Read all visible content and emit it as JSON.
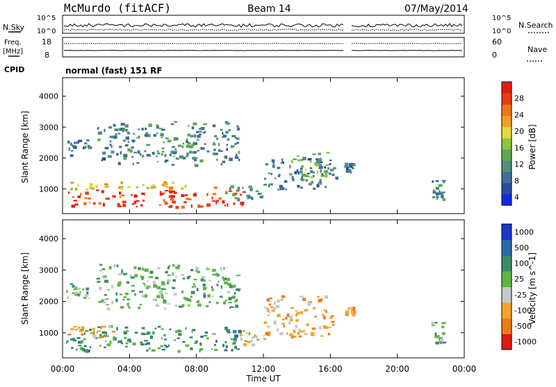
{
  "header": {
    "station": "McMurdo (fitACF)",
    "beam": "Beam 14",
    "date": "07/May/2014",
    "cpid_label": "CPID",
    "cpid_value": "normal (fast) 151 RF"
  },
  "strips": {
    "nsky": {
      "left_label": "N.Sky",
      "left_ticks": [
        "10^5",
        "10^0"
      ],
      "right_ticks": [
        "10^5",
        "10^0"
      ],
      "right_label": "N.Search"
    },
    "freq": {
      "left_label_1": "Freq.",
      "left_label_2": "[MHz]",
      "left_ticks": [
        "18",
        "8"
      ],
      "right_ticks": [
        "60",
        "0"
      ],
      "right_label": "Nave"
    }
  },
  "chart_data": [
    {
      "type": "heatmap",
      "title": "",
      "xlabel": "Time UT",
      "ylabel": "Slant Range [km]",
      "xlim": [
        0,
        24
      ],
      "ylim": [
        200,
        4600
      ],
      "x_ticks": [
        "00:00",
        "04:00",
        "08:00",
        "12:00",
        "16:00",
        "20:00",
        "00:00"
      ],
      "y_ticks": [
        "1000",
        "2000",
        "3000",
        "4000"
      ],
      "colorbar": {
        "label": "Power [dB]",
        "ticks": [
          "4",
          "8",
          "12",
          "16",
          "20",
          "24",
          "28"
        ],
        "colors": [
          "#1428e6",
          "#2a4aa8",
          "#3f6e9a",
          "#4f8f78",
          "#5ea84f",
          "#8fc63a",
          "#e8d83a",
          "#f2a020",
          "#f07418",
          "#ee3a14",
          "#e51d10"
        ]
      },
      "regions": [
        {
          "t0": 0.2,
          "t1": 10.8,
          "r0": 450,
          "r1": 1000,
          "level": 28
        },
        {
          "t0": 0.2,
          "t1": 9.5,
          "r0": 1000,
          "r1": 1250,
          "level": 20
        },
        {
          "t0": 9.5,
          "t1": 12.0,
          "r0": 700,
          "r1": 1150,
          "level": 10
        },
        {
          "t0": 12.0,
          "t1": 16.3,
          "r0": 1000,
          "r1": 2000,
          "level": 8
        },
        {
          "t0": 13.5,
          "t1": 15.8,
          "r0": 1200,
          "r1": 2200,
          "level": 14
        },
        {
          "t0": 0.2,
          "t1": 1.6,
          "r0": 2100,
          "r1": 2600,
          "level": 8
        },
        {
          "t0": 2.0,
          "t1": 10.5,
          "r0": 1800,
          "r1": 3200,
          "level": 10
        },
        {
          "t0": 16.8,
          "t1": 17.4,
          "r0": 1600,
          "r1": 1850,
          "level": 8
        },
        {
          "t0": 22.0,
          "t1": 22.8,
          "r0": 700,
          "r1": 1400,
          "level": 10
        }
      ]
    },
    {
      "type": "heatmap",
      "title": "",
      "xlabel": "Time UT",
      "ylabel": "Slant Range [km]",
      "xlim": [
        0,
        24
      ],
      "ylim": [
        200,
        4600
      ],
      "x_ticks": [
        "00:00",
        "04:00",
        "08:00",
        "12:00",
        "16:00",
        "20:00",
        "00:00"
      ],
      "y_ticks": [
        "1000",
        "2000",
        "3000",
        "4000"
      ],
      "colorbar": {
        "label": "Velocity [m s^-1]",
        "ticks": [
          "1000",
          "500",
          "100",
          "25",
          "-25",
          "-100",
          "-500",
          "-1000"
        ],
        "colors": [
          "#1d37c8",
          "#2a6aa8",
          "#3c8a6a",
          "#5fb548",
          "#c8c8c8",
          "#f2a428",
          "#f07a18",
          "#e01a14"
        ]
      },
      "regions": [
        {
          "t0": 0.2,
          "t1": 10.5,
          "r0": 450,
          "r1": 1250,
          "level": 2
        },
        {
          "t0": 0.2,
          "t1": 3.0,
          "r0": 900,
          "r1": 1250,
          "level": 5
        },
        {
          "t0": 10.5,
          "t1": 12.0,
          "r0": 600,
          "r1": 1100,
          "level": 4
        },
        {
          "t0": 12.0,
          "t1": 16.3,
          "r0": 900,
          "r1": 2200,
          "level": 5
        },
        {
          "t0": 0.2,
          "t1": 1.6,
          "r0": 2100,
          "r1": 2600,
          "level": 3
        },
        {
          "t0": 2.0,
          "t1": 10.5,
          "r0": 1800,
          "r1": 3200,
          "level": 3
        },
        {
          "t0": 16.8,
          "t1": 17.4,
          "r0": 1600,
          "r1": 1850,
          "level": 5
        },
        {
          "t0": 22.0,
          "t1": 22.8,
          "r0": 700,
          "r1": 1400,
          "level": 3
        }
      ]
    }
  ]
}
